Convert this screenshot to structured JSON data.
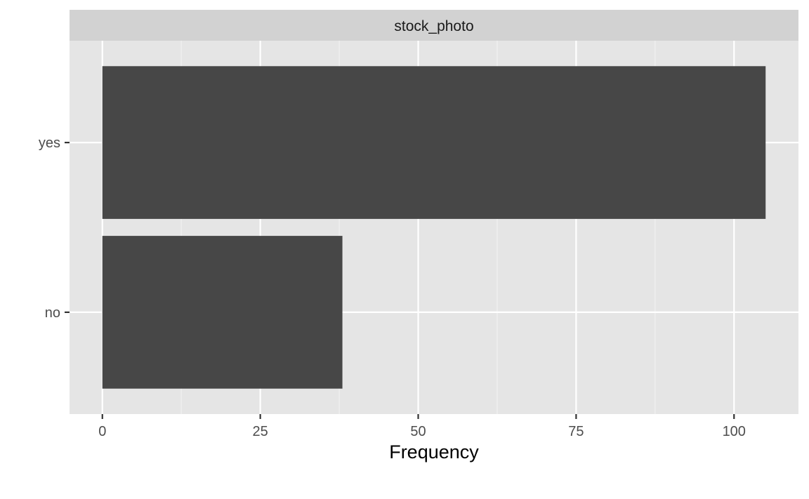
{
  "chart_data": {
    "type": "bar",
    "orientation": "horizontal",
    "facet_label": "stock_photo",
    "categories": [
      "no",
      "yes"
    ],
    "values": [
      38,
      105
    ],
    "xlabel": "Frequency",
    "ylabel": "",
    "xlim": [
      -5.2,
      110.2
    ],
    "x_ticks": [
      0,
      25,
      50,
      75,
      100
    ],
    "x_tick_labels": [
      "0",
      "25",
      "50",
      "75",
      "100"
    ],
    "grid": true,
    "legend": "none",
    "colors": {
      "bar": "#474747",
      "panel_background": "#e5e5e5",
      "strip_background": "#d2d2d2",
      "grid_major": "#ffffff",
      "grid_minor": "#f2f2f2"
    }
  }
}
